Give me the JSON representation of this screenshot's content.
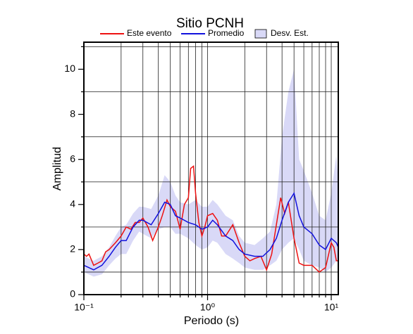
{
  "chart_data": {
    "type": "line",
    "title": "Sitio PCNH",
    "x_label": "Periodo (s)",
    "y_label": "Amplitud",
    "xscale": "log",
    "xlim": [
      0.1,
      11.4
    ],
    "ylim": [
      0,
      11.2
    ],
    "xticks": [
      {
        "value": 0.1,
        "label": "10⁻¹"
      },
      {
        "value": 1,
        "label": "10⁰"
      },
      {
        "value": 10,
        "label": "10¹"
      }
    ],
    "xminor": [
      0.2,
      0.3,
      0.4,
      0.5,
      0.6,
      0.7,
      0.8,
      0.9,
      2,
      3,
      4,
      5,
      6,
      7,
      8,
      9
    ],
    "yticks": [
      0,
      2,
      4,
      6,
      8,
      10
    ],
    "yminor": [
      1,
      3,
      5,
      7,
      9,
      11
    ],
    "grid": true,
    "series": [
      {
        "name": "Este evento",
        "color": "#ee1111",
        "kind": "line",
        "x": [
          0.1,
          0.105,
          0.11,
          0.12,
          0.13,
          0.14,
          0.15,
          0.16,
          0.18,
          0.2,
          0.22,
          0.24,
          0.26,
          0.28,
          0.3,
          0.33,
          0.36,
          0.4,
          0.43,
          0.47,
          0.5,
          0.55,
          0.6,
          0.65,
          0.7,
          0.73,
          0.77,
          0.8,
          0.85,
          0.9,
          0.95,
          1.0,
          1.1,
          1.2,
          1.3,
          1.4,
          1.6,
          1.8,
          2.0,
          2.2,
          2.4,
          2.7,
          3.0,
          3.3,
          3.6,
          3.9,
          4.2,
          4.5,
          5.0,
          5.5,
          6,
          7,
          8,
          9,
          10,
          10.5,
          11,
          11.4
        ],
        "values": [
          1.8,
          1.7,
          1.8,
          1.3,
          1.4,
          1.5,
          1.9,
          2.0,
          2.3,
          2.6,
          3.0,
          2.9,
          3.2,
          3.2,
          3.4,
          3.0,
          2.4,
          3.0,
          3.5,
          4.2,
          3.9,
          3.7,
          2.9,
          4.0,
          4.3,
          5.6,
          5.7,
          4.5,
          3.2,
          2.6,
          3.0,
          3.5,
          3.6,
          3.3,
          2.6,
          2.6,
          3.1,
          2.3,
          1.7,
          1.5,
          1.6,
          1.7,
          1.1,
          1.8,
          3.1,
          4.3,
          3.6,
          4.1,
          2.5,
          1.4,
          1.3,
          1.3,
          1.0,
          1.2,
          2.3,
          2.1,
          1.5,
          1.5
        ]
      },
      {
        "name": "Promedio",
        "color": "#1111dd",
        "kind": "line",
        "x": [
          0.1,
          0.12,
          0.14,
          0.16,
          0.18,
          0.2,
          0.22,
          0.25,
          0.28,
          0.3,
          0.35,
          0.4,
          0.45,
          0.5,
          0.55,
          0.6,
          0.7,
          0.8,
          0.9,
          1.0,
          1.1,
          1.2,
          1.4,
          1.6,
          1.8,
          2.0,
          2.4,
          2.8,
          3.2,
          3.6,
          4.0,
          4.5,
          5.0,
          5.5,
          6,
          7,
          8,
          9,
          10,
          11,
          11.4
        ],
        "values": [
          1.3,
          1.1,
          1.3,
          1.7,
          2.1,
          2.4,
          2.4,
          3.0,
          3.3,
          3.3,
          3.1,
          3.6,
          4.1,
          4.0,
          3.5,
          3.4,
          3.2,
          3.1,
          2.9,
          3.0,
          3.3,
          3.1,
          2.6,
          2.4,
          2.0,
          1.8,
          1.7,
          1.7,
          2.0,
          2.5,
          3.3,
          4.1,
          4.5,
          3.5,
          3.0,
          2.7,
          2.2,
          2.0,
          2.5,
          2.3,
          2.1
        ]
      },
      {
        "name": "Desv. Est.",
        "color": "#d9d9f7",
        "kind": "band",
        "x": [
          0.1,
          0.12,
          0.14,
          0.16,
          0.18,
          0.2,
          0.22,
          0.25,
          0.28,
          0.3,
          0.35,
          0.4,
          0.45,
          0.5,
          0.55,
          0.6,
          0.7,
          0.8,
          0.9,
          1.0,
          1.1,
          1.2,
          1.4,
          1.6,
          1.8,
          2.0,
          2.4,
          2.8,
          3.2,
          3.6,
          4.0,
          4.5,
          5.0,
          5.5,
          6,
          7,
          8,
          9,
          10,
          11,
          11.4
        ],
        "lower": [
          1.0,
          0.8,
          0.9,
          1.3,
          1.6,
          1.8,
          1.8,
          2.4,
          2.8,
          2.7,
          2.5,
          2.9,
          3.0,
          3.0,
          2.7,
          2.7,
          2.5,
          2.2,
          2.0,
          2.1,
          2.4,
          2.3,
          1.8,
          1.6,
          1.4,
          1.2,
          1.1,
          1.1,
          1.3,
          1.5,
          2.0,
          2.3,
          2.5,
          2.0,
          1.5,
          1.3,
          1.2,
          1.0,
          1.2,
          1.5,
          1.5
        ],
        "upper": [
          1.7,
          1.5,
          1.7,
          2.1,
          2.6,
          3.0,
          3.1,
          3.6,
          3.9,
          3.9,
          3.8,
          4.4,
          5.3,
          5.0,
          4.4,
          4.1,
          4.0,
          4.2,
          3.9,
          3.9,
          4.2,
          4.0,
          3.5,
          3.3,
          2.6,
          2.3,
          2.2,
          2.5,
          2.8,
          4.0,
          7.0,
          9.0,
          10.0,
          6.0,
          5.5,
          4.5,
          3.5,
          3.3,
          4.5,
          6.2,
          5.0
        ]
      }
    ]
  }
}
